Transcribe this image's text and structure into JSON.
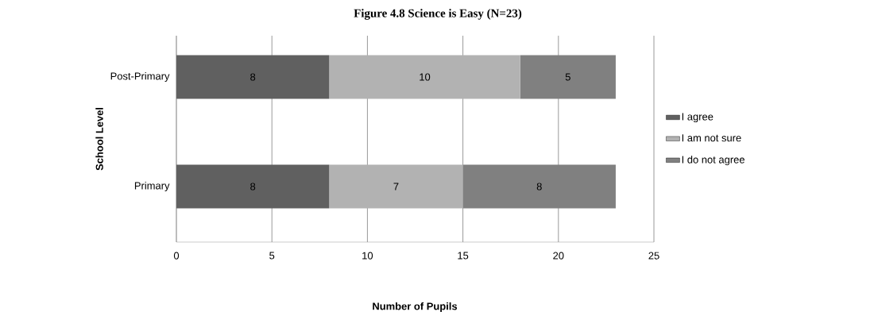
{
  "chart_data": {
    "type": "bar",
    "orientation": "horizontal",
    "stacked": true,
    "title": "Figure 4.8 Science is Easy (N=23)",
    "xlabel": "Number of Pupils",
    "ylabel": "School Level",
    "categories": [
      "Post-Primary",
      "Primary"
    ],
    "series": [
      {
        "name": "I agree",
        "color": "#606060",
        "values": [
          8,
          8
        ]
      },
      {
        "name": "I am not sure",
        "color": "#b2b2b2",
        "values": [
          10,
          7
        ]
      },
      {
        "name": "I do not agree",
        "color": "#808080",
        "values": [
          5,
          8
        ]
      }
    ],
    "xlim": [
      0,
      25
    ],
    "xticks": [
      0,
      5,
      10,
      15,
      20,
      25
    ],
    "grid": "x",
    "legend": "right",
    "data_labels": true
  }
}
